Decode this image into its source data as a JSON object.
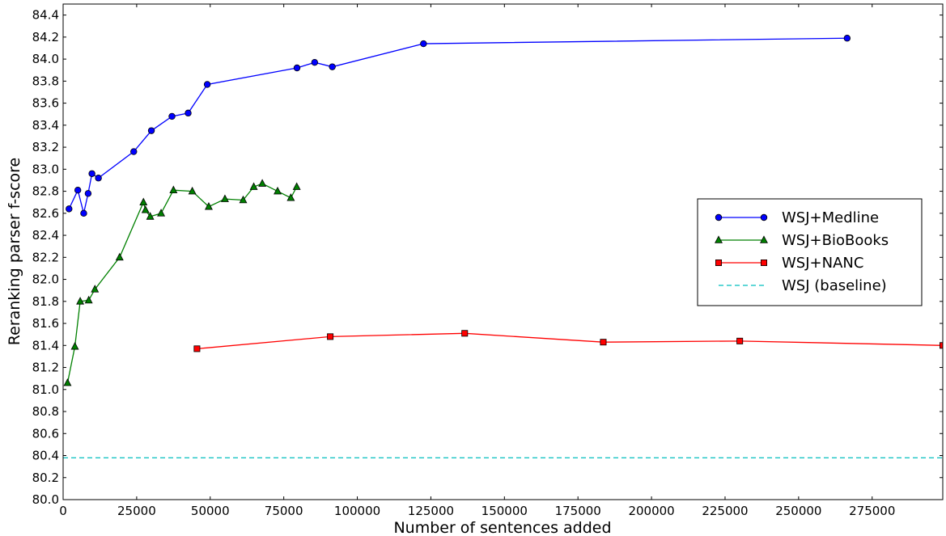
{
  "chart_data": {
    "type": "line",
    "xlabel": "Number of sentences added",
    "ylabel": "Reranking parser f-score",
    "xlim": [
      0,
      299000
    ],
    "ylim": [
      80.0,
      84.5
    ],
    "xticks": [
      0,
      25000,
      50000,
      75000,
      100000,
      125000,
      150000,
      175000,
      200000,
      225000,
      250000,
      275000
    ],
    "yticks": [
      80.0,
      80.2,
      80.4,
      80.6,
      80.8,
      81.0,
      81.2,
      81.4,
      81.6,
      81.8,
      82.0,
      82.2,
      82.4,
      82.6,
      82.8,
      83.0,
      83.2,
      83.4,
      83.6,
      83.8,
      84.0,
      84.2,
      84.4
    ],
    "grid": false,
    "legend_position": "center-right",
    "series": [
      {
        "name": "WSJ+Medline",
        "color": "#0000ff",
        "marker": "circle",
        "linestyle": "solid",
        "points": [
          [
            2000,
            82.64
          ],
          [
            5000,
            82.81
          ],
          [
            7000,
            82.6
          ],
          [
            8500,
            82.78
          ],
          [
            9800,
            82.96
          ],
          [
            12000,
            82.92
          ],
          [
            24000,
            83.16
          ],
          [
            30000,
            83.35
          ],
          [
            37000,
            83.48
          ],
          [
            42500,
            83.51
          ],
          [
            49000,
            83.77
          ],
          [
            79500,
            83.92
          ],
          [
            85500,
            83.97
          ],
          [
            91500,
            83.93
          ],
          [
            122500,
            84.14
          ],
          [
            266500,
            84.19
          ]
        ]
      },
      {
        "name": "WSJ+BioBooks",
        "color": "#008000",
        "marker": "triangle",
        "linestyle": "solid",
        "points": [
          [
            1500,
            81.06
          ],
          [
            4000,
            81.39
          ],
          [
            5800,
            81.8
          ],
          [
            8700,
            81.81
          ],
          [
            10800,
            81.91
          ],
          [
            19200,
            82.2
          ],
          [
            27300,
            82.7
          ],
          [
            28000,
            82.63
          ],
          [
            29600,
            82.57
          ],
          [
            33300,
            82.6
          ],
          [
            37500,
            82.81
          ],
          [
            43900,
            82.8
          ],
          [
            49500,
            82.66
          ],
          [
            55000,
            82.73
          ],
          [
            61200,
            82.72
          ],
          [
            64800,
            82.84
          ],
          [
            67700,
            82.87
          ],
          [
            72900,
            82.8
          ],
          [
            77400,
            82.74
          ],
          [
            79400,
            82.84
          ]
        ]
      },
      {
        "name": "WSJ+NANC",
        "color": "#ff0000",
        "marker": "square",
        "linestyle": "solid",
        "points": [
          [
            45500,
            81.37
          ],
          [
            90800,
            81.48
          ],
          [
            136500,
            81.51
          ],
          [
            183600,
            81.43
          ],
          [
            230000,
            81.44
          ],
          [
            299000,
            81.4
          ]
        ]
      },
      {
        "name": "WSJ (baseline)",
        "color": "#00bfbf",
        "marker": "none",
        "linestyle": "dashed",
        "y": 80.38
      }
    ]
  }
}
